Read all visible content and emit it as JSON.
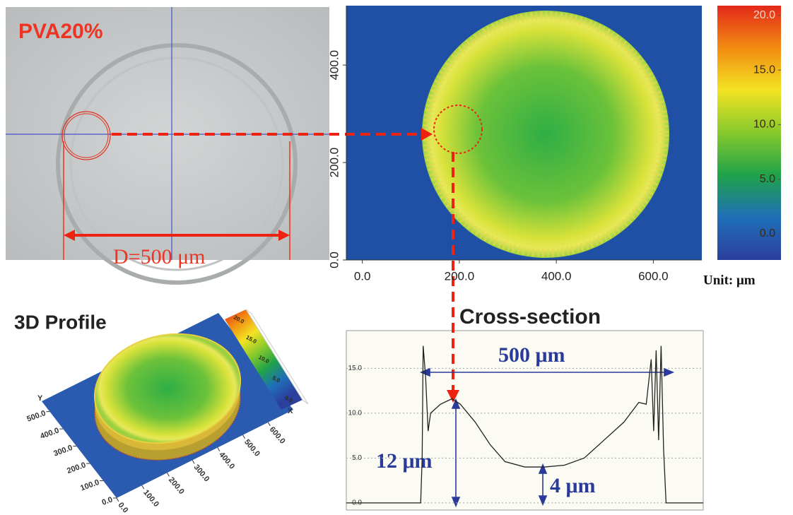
{
  "image": {
    "label": "PVA20%",
    "scale_label": "D=500 μm"
  },
  "chart_data": [
    {
      "type": "heatmap",
      "xlim": [
        -33,
        700
      ],
      "ylim": [
        0,
        522
      ],
      "xticks": [
        {
          "value": 0,
          "label": "0.0"
        },
        {
          "value": 200,
          "label": "200.0"
        },
        {
          "value": 400,
          "label": "400.0"
        },
        {
          "value": 600,
          "label": "600.0"
        }
      ],
      "yticks": [
        {
          "value": 0,
          "label": "0.0"
        },
        {
          "value": 200,
          "label": "200.0"
        },
        {
          "value": 400,
          "label": "400.0"
        }
      ],
      "zlim": [
        -2.4,
        20.9
      ],
      "zticks": [
        {
          "value": 20,
          "label": "20.0"
        },
        {
          "value": 15,
          "label": "15.0"
        },
        {
          "value": 10,
          "label": "10.0"
        },
        {
          "value": 5,
          "label": "5.0"
        },
        {
          "value": 0,
          "label": "0.0"
        }
      ],
      "colormap": [
        "#2b3f9c",
        "#1f6fb8",
        "#1fa24a",
        "#86c92c",
        "#f2e322",
        "#f28c12",
        "#e4281a"
      ],
      "unit_label": "Unit:  μm"
    },
    {
      "type": "line",
      "title": "Cross-section",
      "color": "#222222",
      "xlim": [
        0,
        720
      ],
      "ylim": [
        -0.8,
        19.2
      ],
      "yticks": [
        {
          "value": 0,
          "label": "0.0"
        },
        {
          "value": 5,
          "label": "5.0"
        },
        {
          "value": 10,
          "label": "10.0"
        },
        {
          "value": 15,
          "label": "15.0"
        }
      ],
      "grid": true,
      "x": [
        0,
        150,
        153,
        155,
        160,
        165,
        170,
        190,
        213,
        230,
        260,
        290,
        320,
        360,
        400,
        440,
        480,
        520,
        560,
        590,
        605,
        615,
        620,
        625,
        630,
        635,
        640,
        645,
        720
      ],
      "values": [
        0,
        0,
        5,
        17.5,
        14,
        8,
        10,
        11,
        11.6,
        11,
        9,
        6.5,
        4.6,
        4,
        4,
        4.2,
        5,
        7,
        9,
        11.2,
        11,
        16,
        8,
        17,
        7,
        17.5,
        6,
        0,
        0
      ],
      "annotations": [
        "500 μm",
        "12 μm",
        "4 μm"
      ]
    },
    {
      "type": "surface",
      "title": "3D Profile",
      "xlabel": "X",
      "ylabel": "Y",
      "xlim": [
        0,
        700
      ],
      "ylim": [
        0,
        560
      ],
      "xticks": [
        {
          "value": 0,
          "label": "0.0"
        },
        {
          "value": 100,
          "label": "100.0"
        },
        {
          "value": 200,
          "label": "200.0"
        },
        {
          "value": 300,
          "label": "300.0"
        },
        {
          "value": 400,
          "label": "400.0"
        },
        {
          "value": 500,
          "label": "500.0"
        },
        {
          "value": 600,
          "label": "600.0"
        }
      ],
      "yticks": [
        {
          "value": 0,
          "label": "0.0"
        },
        {
          "value": 100,
          "label": "100.0"
        },
        {
          "value": 200,
          "label": "200.0"
        },
        {
          "value": 300,
          "label": "300.0"
        },
        {
          "value": 400,
          "label": "400.0"
        },
        {
          "value": 500,
          "label": "500.0"
        }
      ],
      "zlim": [
        0,
        20
      ],
      "zticks": [
        {
          "value": 20,
          "label": "20.0"
        },
        {
          "value": 15,
          "label": "15.0"
        },
        {
          "value": 10,
          "label": "10.0"
        },
        {
          "value": 5,
          "label": "5.0"
        },
        {
          "value": 0,
          "label": "0.0"
        }
      ]
    }
  ]
}
